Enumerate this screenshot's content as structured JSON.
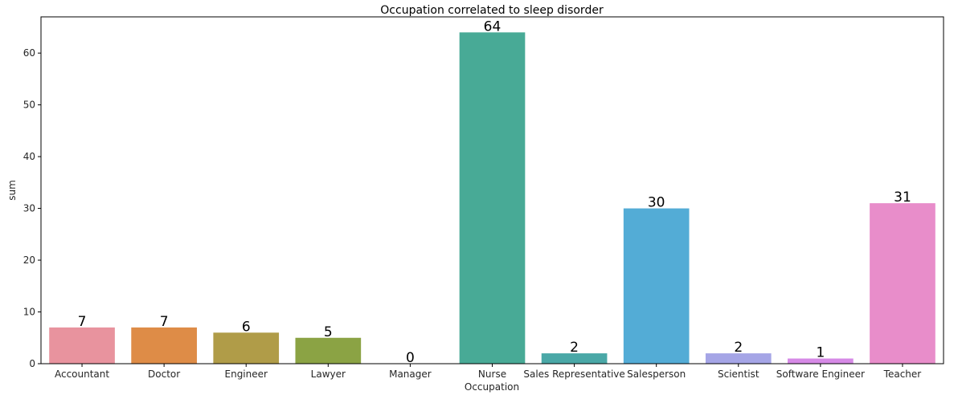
{
  "chart_data": {
    "type": "bar",
    "title": "Occupation correlated to sleep disorder",
    "xlabel": "Occupation",
    "ylabel": "sum",
    "categories": [
      "Accountant",
      "Doctor",
      "Engineer",
      "Lawyer",
      "Manager",
      "Nurse",
      "Sales Representative",
      "Salesperson",
      "Scientist",
      "Software Engineer",
      "Teacher"
    ],
    "values": [
      7,
      7,
      6,
      5,
      0,
      64,
      2,
      30,
      2,
      1,
      31
    ],
    "colors": [
      "#e8939e",
      "#de8c47",
      "#b09c48",
      "#8ba344",
      "#45a77d",
      "#48aa96",
      "#4aa8a7",
      "#53acd6",
      "#a5a5e6",
      "#d68ae6",
      "#e88dca"
    ],
    "ylim": [
      0,
      67
    ],
    "yticks": [
      0,
      10,
      20,
      30,
      40,
      50,
      60
    ],
    "grid": false,
    "legend": "none"
  }
}
